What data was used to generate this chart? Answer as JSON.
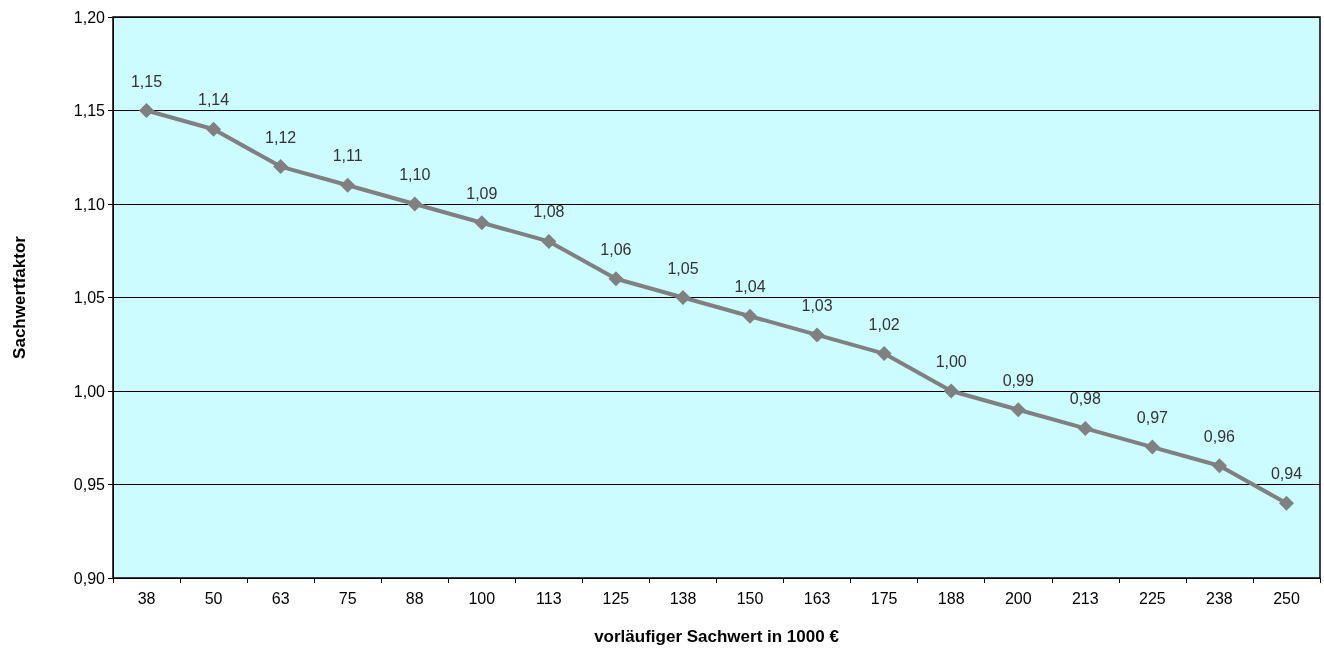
{
  "chart_data": {
    "type": "line",
    "xlabel": "vorläufiger Sachwert in 1000 €",
    "ylabel": "Sachwertfaktor",
    "categories": [
      "38",
      "50",
      "63",
      "75",
      "88",
      "100",
      "113",
      "125",
      "138",
      "150",
      "163",
      "175",
      "188",
      "200",
      "213",
      "225",
      "238",
      "250"
    ],
    "series": [
      {
        "color": "#808080",
        "values": [
          1.15,
          1.14,
          1.12,
          1.11,
          1.1,
          1.09,
          1.08,
          1.06,
          1.05,
          1.04,
          1.03,
          1.02,
          1.0,
          0.99,
          0.98,
          0.97,
          0.96,
          0.94
        ],
        "value_labels": [
          "1,15",
          "1,14",
          "1,12",
          "1,11",
          "1,10",
          "1,09",
          "1,08",
          "1,06",
          "1,05",
          "1,04",
          "1,03",
          "1,02",
          "1,00",
          "0,99",
          "0,98",
          "0,97",
          "0,96",
          "0,94"
        ]
      }
    ],
    "ylim": [
      0.9,
      1.2
    ],
    "yticks": [
      {
        "value": 0.9,
        "label": "0,90"
      },
      {
        "value": 0.95,
        "label": "0,95"
      },
      {
        "value": 1.0,
        "label": "1,00"
      },
      {
        "value": 1.05,
        "label": "1,05"
      },
      {
        "value": 1.1,
        "label": "1,10"
      },
      {
        "value": 1.15,
        "label": "1,15"
      },
      {
        "value": 1.2,
        "label": "1,20"
      }
    ],
    "grid": "y",
    "marker": "diamond",
    "line_style": "solid"
  }
}
